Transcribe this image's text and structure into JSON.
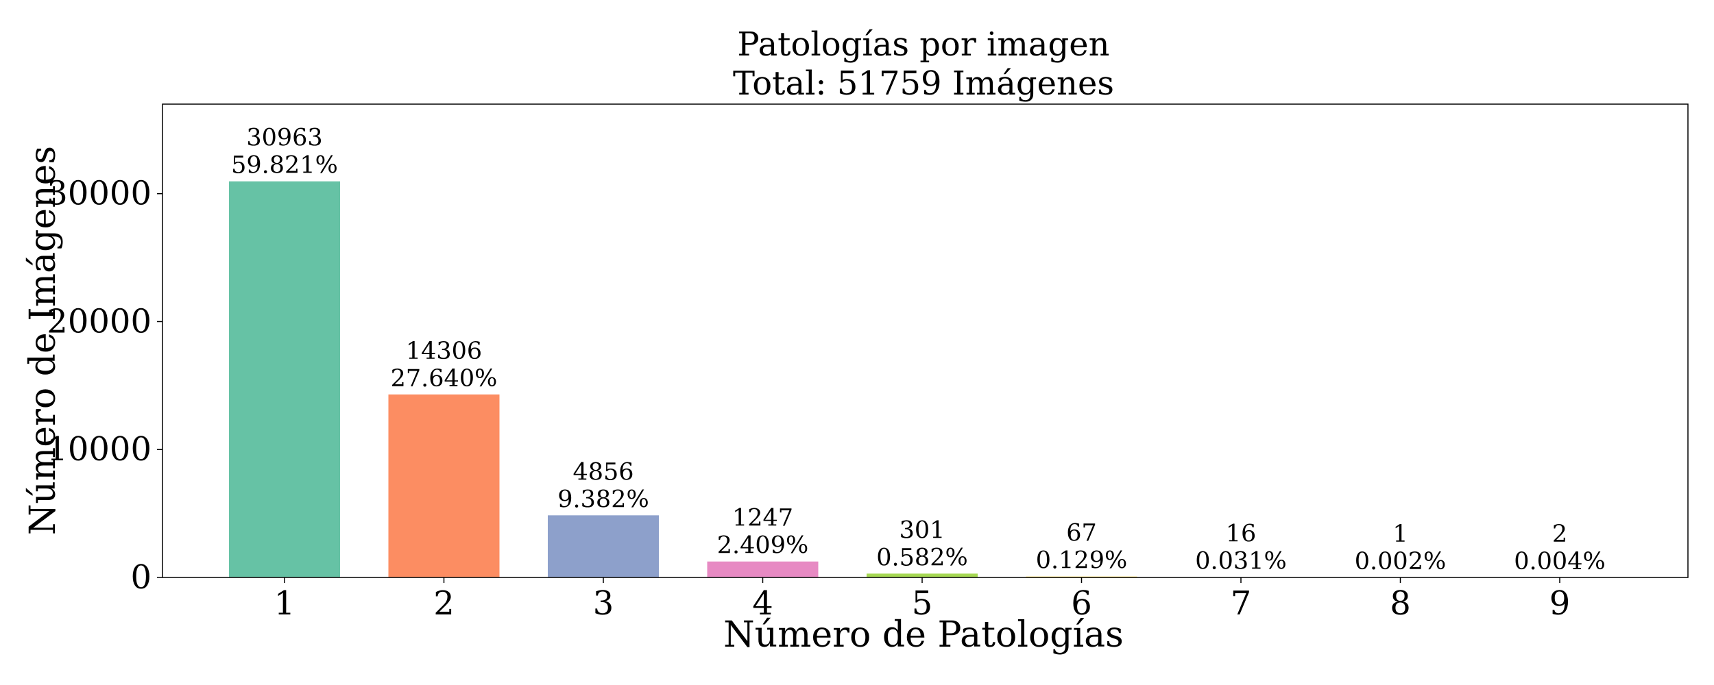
{
  "chart_data": {
    "type": "bar",
    "title": "Patologías por imagen",
    "subtitle": "Total: 51759 Imágenes",
    "xlabel": "Número de Patologías",
    "ylabel": "Número de Imágenes",
    "categories": [
      "1",
      "2",
      "3",
      "4",
      "5",
      "6",
      "7",
      "8",
      "9"
    ],
    "values": [
      30963,
      14306,
      4856,
      1247,
      301,
      67,
      16,
      1,
      2
    ],
    "value_labels": [
      "30963",
      "14306",
      "4856",
      "1247",
      "301",
      "67",
      "16",
      "1",
      "2"
    ],
    "percent_labels": [
      "59.821%",
      "27.640%",
      "9.382%",
      "2.409%",
      "0.582%",
      "0.129%",
      "0.031%",
      "0.002%",
      "0.004%"
    ],
    "colors": [
      "#66c2a5",
      "#fc8d62",
      "#8da0cb",
      "#e78ac3",
      "#a6d854",
      "#ffd92f",
      "#e5c494",
      "#b3b3b3",
      "#66c2a5"
    ],
    "yticks": [
      0,
      10000,
      20000,
      30000
    ],
    "ytick_labels": [
      "0",
      "10000",
      "20000",
      "30000"
    ],
    "ylim": [
      0,
      37000
    ],
    "grid": false,
    "legend": "none"
  }
}
